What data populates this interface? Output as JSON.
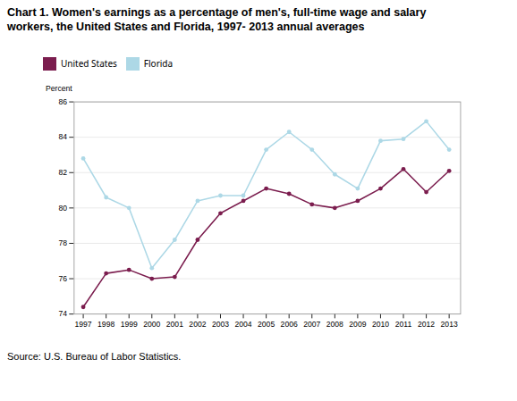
{
  "chart_data": {
    "type": "line",
    "title": "Chart 1. Women's earnings as a percentage of men's, full-time wage and salary\nworkers, the United States and Florida, 1997- 2013  annual averages",
    "ylabel": "Percent",
    "source": "Source: U.S. Bureau of Labor Statistics.",
    "x": [
      1997,
      1998,
      1999,
      2000,
      2001,
      2002,
      2003,
      2004,
      2005,
      2006,
      2007,
      2008,
      2009,
      2010,
      2011,
      2012,
      2013
    ],
    "series": [
      {
        "name": "United States",
        "color": "#7B1D4E",
        "values": [
          74.4,
          76.3,
          76.5,
          76.0,
          76.1,
          78.2,
          79.7,
          80.4,
          81.1,
          80.8,
          80.2,
          80.0,
          80.4,
          81.1,
          82.2,
          80.9,
          82.1
        ]
      },
      {
        "name": "Florida",
        "color": "#ADD8E6",
        "values": [
          82.8,
          80.6,
          80.0,
          76.6,
          78.2,
          80.4,
          80.7,
          80.7,
          83.3,
          84.3,
          83.3,
          81.9,
          81.1,
          83.8,
          83.9,
          84.9,
          83.3
        ]
      }
    ],
    "xlim": [
      1996.6,
      2013.5
    ],
    "xticks": [
      1997,
      1998,
      1999,
      2000,
      2001,
      2002,
      2003,
      2004,
      2005,
      2006,
      2007,
      2008,
      2009,
      2010,
      2011,
      2012,
      2013
    ],
    "ylim": [
      74,
      86
    ],
    "yticks": [
      74,
      76,
      78,
      80,
      82,
      84,
      86
    ],
    "grid": "y",
    "legend": "top",
    "marker": "circle"
  }
}
